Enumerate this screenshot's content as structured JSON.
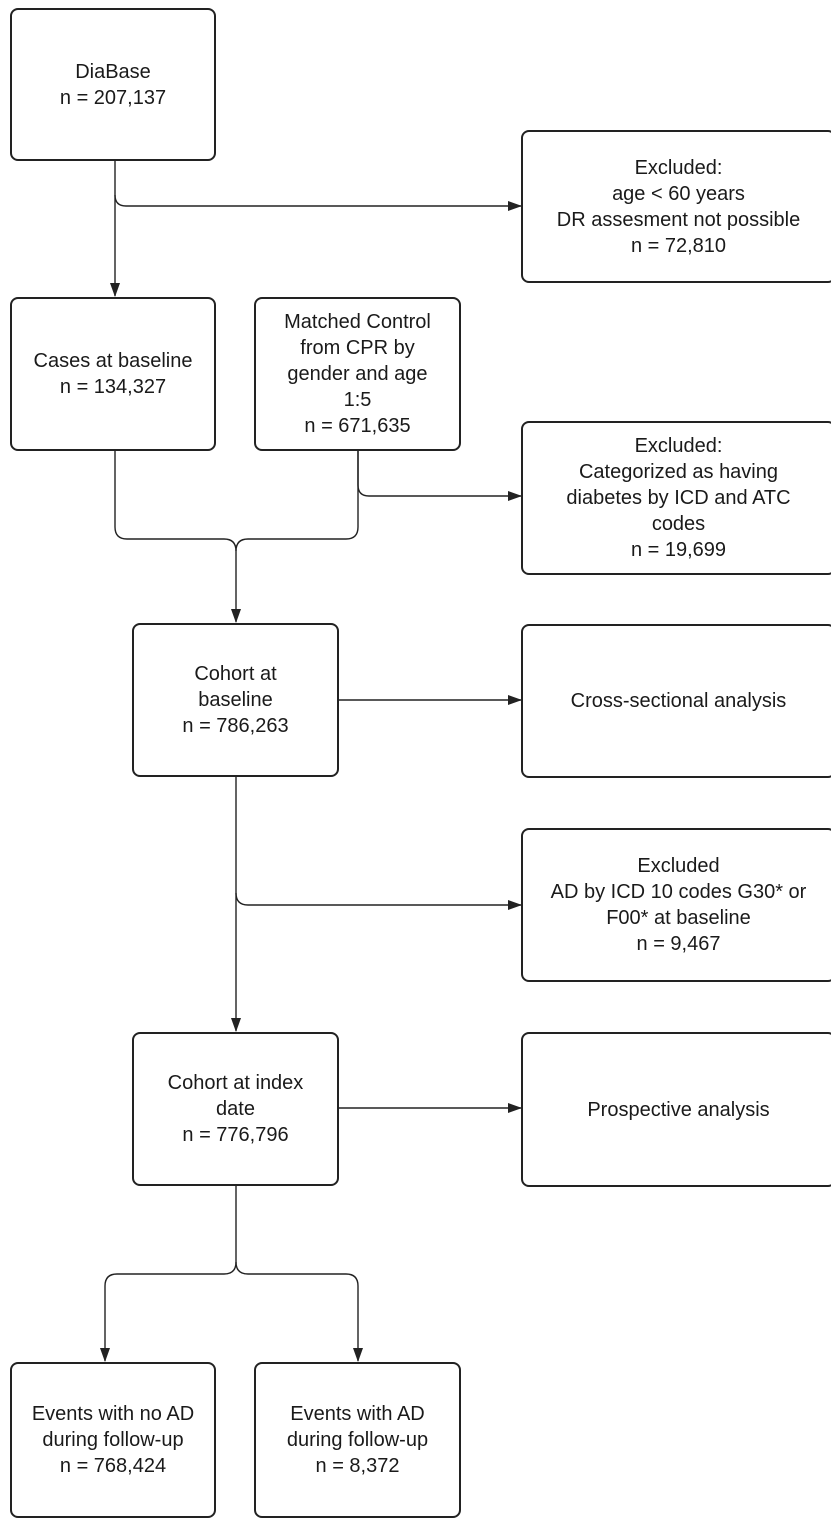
{
  "boxes": {
    "diabase": {
      "lines": [
        "DiaBase",
        "n = 207,137"
      ]
    },
    "excluded_age": {
      "lines": [
        "Excluded:",
        "age < 60 years",
        "DR assesment not possible",
        "n = 72,810"
      ]
    },
    "cases_baseline": {
      "lines": [
        "Cases at baseline",
        "n = 134,327"
      ]
    },
    "matched_control": {
      "lines": [
        "Matched Control",
        "from CPR by",
        "gender and age",
        "1:5",
        "n = 671,635"
      ]
    },
    "excluded_diabetes": {
      "lines": [
        "Excluded:",
        "Categorized as having",
        "diabetes by ICD and ATC",
        "codes",
        "n = 19,699"
      ]
    },
    "cohort_baseline": {
      "lines": [
        "Cohort at",
        "baseline",
        "n = 786,263"
      ]
    },
    "cross_sectional": {
      "lines": [
        "Cross-sectional analysis"
      ]
    },
    "excluded_ad": {
      "lines": [
        "Excluded",
        "AD by ICD 10 codes G30* or",
        "F00* at baseline",
        "n = 9,467"
      ]
    },
    "cohort_index": {
      "lines": [
        "Cohort at index",
        "date",
        "n = 776,796"
      ]
    },
    "prospective": {
      "lines": [
        "Prospective analysis"
      ]
    },
    "events_no_ad": {
      "lines": [
        "Events with no AD",
        "during follow-up",
        "n = 768,424"
      ]
    },
    "events_ad": {
      "lines": [
        "Events with AD",
        "during follow-up",
        "n = 8,372"
      ]
    }
  }
}
